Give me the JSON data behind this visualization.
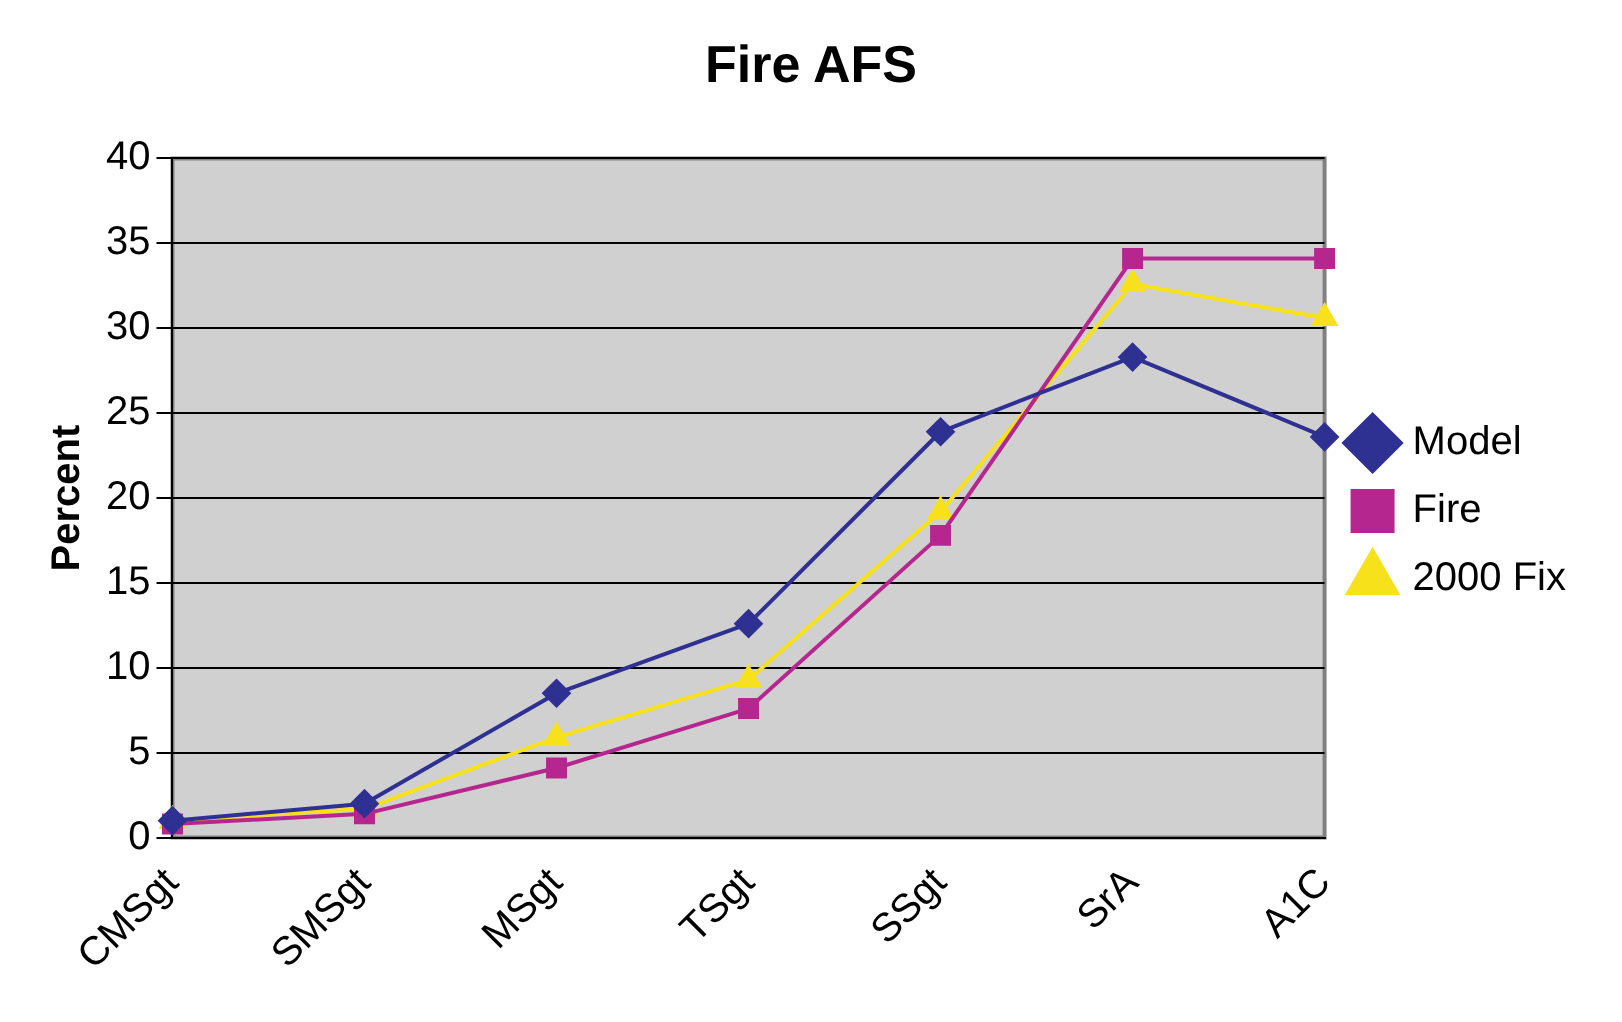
{
  "chart_data": {
    "type": "line",
    "title": "Fire AFS",
    "ylabel": "Percent",
    "categories": [
      "CMSgt",
      "SMSgt",
      "MSgt",
      "TSgt",
      "SSgt",
      "SrA",
      "A1C"
    ],
    "ylim": [
      0,
      40
    ],
    "yticks": [
      0,
      5,
      10,
      15,
      20,
      25,
      30,
      35,
      40
    ],
    "grid": "y",
    "legend": "right",
    "series": [
      {
        "name": "Model",
        "color": "#2e3192",
        "marker": "diamond",
        "values": [
          1.0,
          2.0,
          8.5,
          12.6,
          23.9,
          28.3,
          23.6
        ]
      },
      {
        "name": "Fire",
        "color": "#b5268e",
        "marker": "square",
        "values": [
          0.8,
          1.4,
          4.1,
          7.6,
          17.8,
          34.1,
          34.1
        ]
      },
      {
        "name": "2000 Fix",
        "color": "#f7e11b",
        "marker": "triangle",
        "values": [
          1.0,
          1.7,
          5.9,
          9.3,
          19.2,
          32.6,
          30.6
        ]
      }
    ]
  }
}
